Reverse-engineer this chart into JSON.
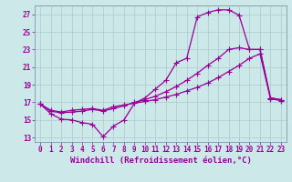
{
  "xlabel": "Windchill (Refroidissement éolien,°C)",
  "bg_color": "#cce8e8",
  "line_color": "#990099",
  "grid_color": "#aacccc",
  "xlim": [
    -0.5,
    23.5
  ],
  "ylim": [
    12.5,
    28.0
  ],
  "yticks": [
    13,
    15,
    17,
    19,
    21,
    23,
    25,
    27
  ],
  "xticks": [
    0,
    1,
    2,
    3,
    4,
    5,
    6,
    7,
    8,
    9,
    10,
    11,
    12,
    13,
    14,
    15,
    16,
    17,
    18,
    19,
    20,
    21,
    22,
    23
  ],
  "c1_x": [
    0,
    1,
    2,
    3,
    4,
    5,
    6,
    7,
    8,
    9,
    10,
    11,
    12,
    13,
    14,
    15,
    16,
    17,
    18,
    19,
    20,
    21,
    22,
    23
  ],
  "c1_y": [
    16.8,
    15.7,
    15.1,
    15.0,
    14.7,
    14.5,
    13.1,
    14.3,
    15.0,
    16.9,
    17.5,
    18.5,
    19.5,
    21.5,
    22.0,
    26.7,
    27.2,
    27.5,
    27.5,
    26.9,
    23.0,
    23.0,
    17.5,
    17.3
  ],
  "c2_x": [
    0,
    1,
    2,
    3,
    4,
    5,
    6,
    7,
    8,
    9,
    10,
    11,
    12,
    13,
    14,
    15,
    16,
    17,
    18,
    19,
    20,
    21,
    22,
    23
  ],
  "c2_y": [
    16.8,
    16.0,
    15.8,
    15.9,
    16.0,
    16.2,
    16.0,
    16.3,
    16.6,
    17.0,
    17.3,
    17.7,
    18.2,
    18.8,
    19.5,
    20.3,
    21.2,
    22.0,
    23.0,
    23.2,
    23.0,
    23.0,
    17.5,
    17.3
  ],
  "c3_x": [
    0,
    1,
    2,
    3,
    4,
    5,
    6,
    7,
    8,
    9,
    10,
    11,
    12,
    13,
    14,
    15,
    16,
    17,
    18,
    19,
    20,
    21,
    22,
    23
  ],
  "c3_y": [
    16.8,
    16.1,
    15.9,
    16.1,
    16.2,
    16.3,
    16.1,
    16.5,
    16.7,
    16.9,
    17.1,
    17.3,
    17.6,
    17.9,
    18.3,
    18.7,
    19.2,
    19.8,
    20.5,
    21.2,
    22.0,
    22.5,
    17.4,
    17.2
  ],
  "markersize": 2.5,
  "linewidth": 0.9,
  "tick_fontsize": 5.5,
  "xlabel_fontsize": 6.5
}
